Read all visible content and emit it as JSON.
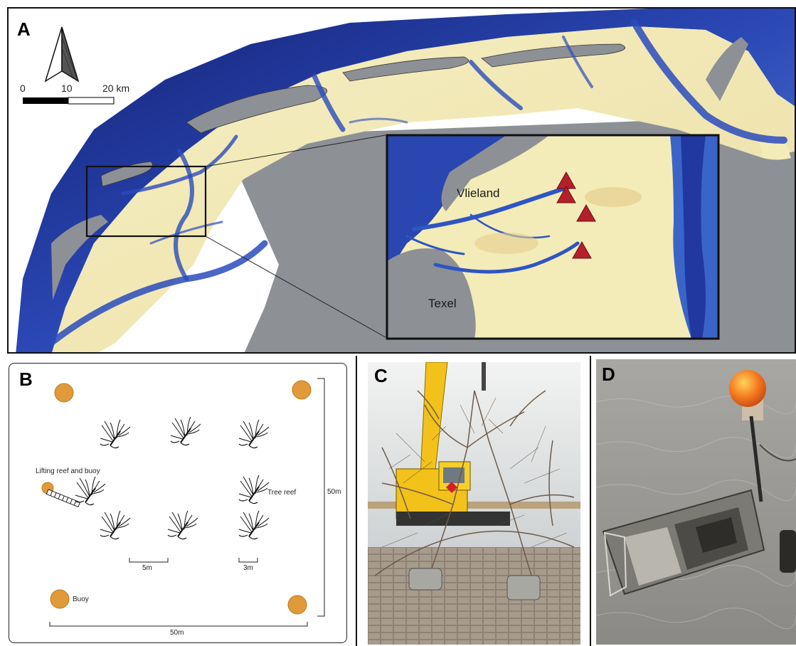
{
  "panel_a": {
    "label": "A",
    "scale": {
      "zero": "0",
      "mid": "10",
      "end": "20 km"
    },
    "inset": {
      "place1": "Vlieland",
      "place2": "Texel"
    },
    "site_markers": 4
  },
  "panel_b": {
    "label": "B",
    "lifting_label": "Lifting reef and buoy",
    "tree_reef_label": "Tree reef",
    "buoy_label": "Buoy",
    "spacing_5m": "5m",
    "spacing_3m": "3m",
    "height_label": "50m",
    "width_label": "50m"
  },
  "panel_c": {
    "label": "C"
  },
  "panel_d": {
    "label": "D"
  },
  "colors": {
    "deep_water": "#1a2a8c",
    "channel": "#3a5ec4",
    "tidal_flat": "#f3ecb8",
    "land": "#8d9095",
    "marker": "#b3202a",
    "buoy": "#e09a3a"
  }
}
